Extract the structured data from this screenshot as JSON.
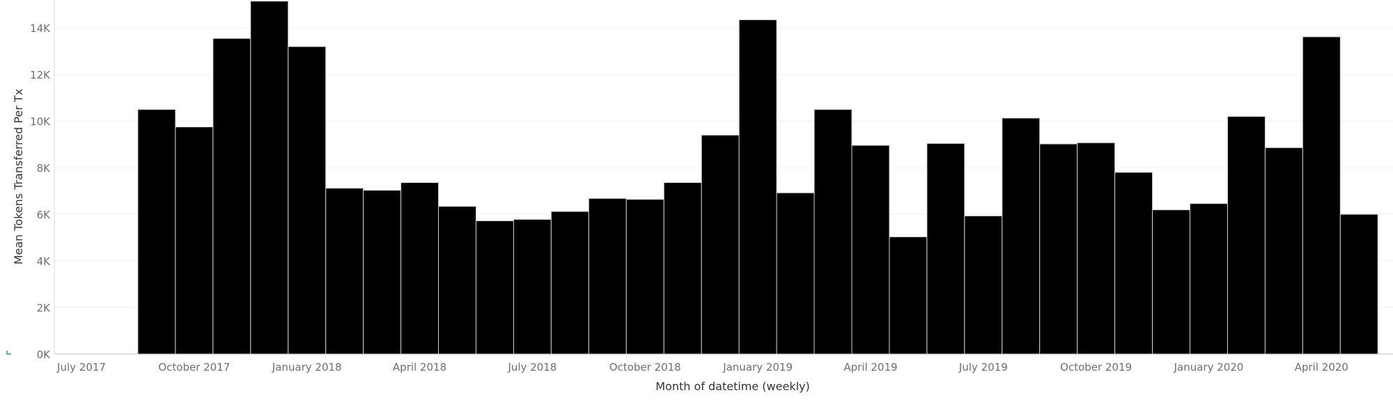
{
  "chart_data": {
    "type": "bar",
    "xlabel": "Month of datetime (weekly)",
    "ylabel": "Mean Tokens Transferred Per Tx",
    "ylim": [
      0,
      15200
    ],
    "yticks": [
      0,
      2000,
      4000,
      6000,
      8000,
      10000,
      12000,
      14000
    ],
    "ytick_labels": [
      "0K",
      "2K",
      "4K",
      "6K",
      "8K",
      "10K",
      "12K",
      "14K"
    ],
    "x_axis_labels": [
      "July 2017",
      "October 2017",
      "January 2018",
      "April 2018",
      "July 2018",
      "October 2018",
      "January 2019",
      "April 2019",
      "July 2019",
      "October 2019",
      "January 2020",
      "April 2020"
    ],
    "x_axis_months": [
      "2017-07",
      "2017-10",
      "2018-01",
      "2018-04",
      "2018-07",
      "2018-10",
      "2019-01",
      "2019-04",
      "2019-07",
      "2019-10",
      "2020-01",
      "2020-04"
    ],
    "categories": [
      "2017-09",
      "2017-10",
      "2017-11",
      "2017-12",
      "2018-01",
      "2018-02",
      "2018-03",
      "2018-04",
      "2018-05",
      "2018-06",
      "2018-07",
      "2018-08",
      "2018-09",
      "2018-10",
      "2018-11",
      "2018-12",
      "2019-01",
      "2019-02",
      "2019-03",
      "2019-04",
      "2019-05",
      "2019-06",
      "2019-07",
      "2019-08",
      "2019-09",
      "2019-10",
      "2019-11",
      "2019-12",
      "2020-01",
      "2020-02",
      "2020-03",
      "2020-04",
      "2020-05"
    ],
    "values": [
      10500,
      9750,
      13550,
      15150,
      13200,
      7120,
      7030,
      7360,
      6340,
      5720,
      5780,
      6120,
      6680,
      6640,
      7360,
      9400,
      14350,
      6920,
      10500,
      8960,
      5030,
      9040,
      5930,
      10130,
      9020,
      9070,
      7800,
      6190,
      6460,
      10200,
      8860,
      13620,
      6000
    ],
    "grid": true,
    "legend": "none",
    "bar_color": "#000000"
  }
}
